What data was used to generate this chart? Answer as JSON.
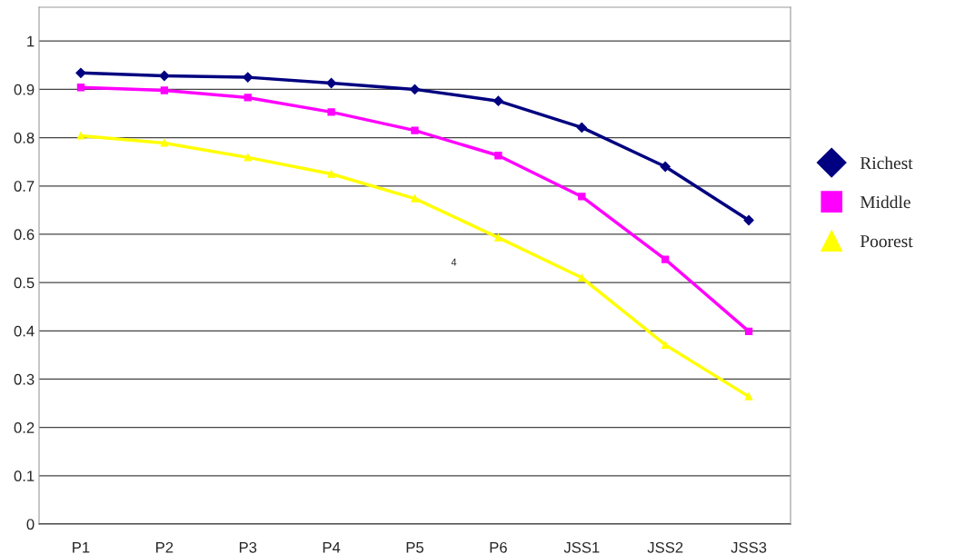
{
  "chart_data": {
    "type": "line",
    "categories": [
      "P1",
      "P2",
      "P3",
      "P4",
      "P5",
      "P6",
      "JSS1",
      "JSS2",
      "JSS3"
    ],
    "series": [
      {
        "name": "Richest",
        "color": "#000080",
        "marker": "diamond",
        "values": [
          0.934,
          0.928,
          0.925,
          0.913,
          0.9,
          0.876,
          0.821,
          0.74,
          0.629
        ]
      },
      {
        "name": "Middle",
        "color": "#ff00ff",
        "marker": "square",
        "values": [
          0.904,
          0.898,
          0.883,
          0.853,
          0.815,
          0.763,
          0.678,
          0.548,
          0.399
        ]
      },
      {
        "name": "Poorest",
        "color": "#ffff00",
        "marker": "triangle",
        "values": [
          0.804,
          0.789,
          0.759,
          0.725,
          0.674,
          0.593,
          0.51,
          0.371,
          0.264
        ]
      }
    ],
    "ylim": [
      0,
      1.07
    ],
    "yticks": [
      0,
      0.1,
      0.2,
      0.3,
      0.4,
      0.5,
      0.6,
      0.7,
      0.8,
      0.9,
      1
    ],
    "grid": "y",
    "legend": "right",
    "line_style": "solid",
    "annotations": [
      "4"
    ]
  }
}
